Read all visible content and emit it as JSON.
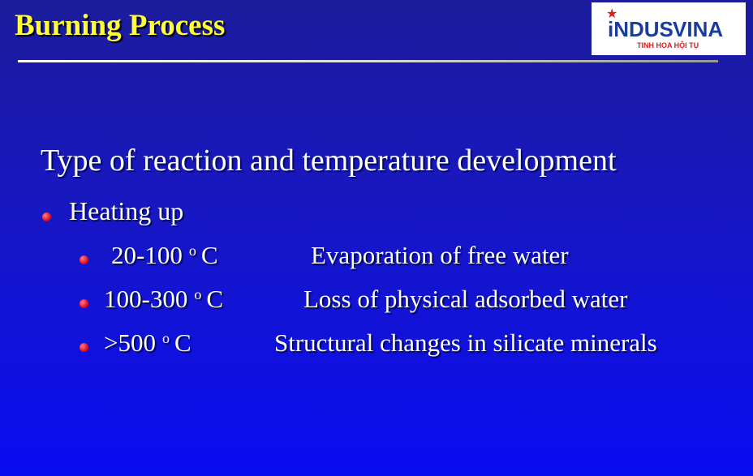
{
  "header": {
    "title": "Burning Process"
  },
  "logo": {
    "brand_left": "iNDUS",
    "brand_right": "VINA",
    "tagline": "TINH HOA HỘI TỤ"
  },
  "content": {
    "heading": "Type of reaction and temperature development",
    "bullet": "Heating up",
    "items": [
      {
        "range": "20-100",
        "degree": "o",
        "unit": "C",
        "description": "Evaporation of free water"
      },
      {
        "range": "100-300",
        "degree": "o",
        "unit": "C",
        "description": "Loss of physical adsorbed water"
      },
      {
        "range": ">500",
        "degree": "o",
        "unit": "C",
        "description": "Structural changes in silicate minerals"
      }
    ]
  }
}
